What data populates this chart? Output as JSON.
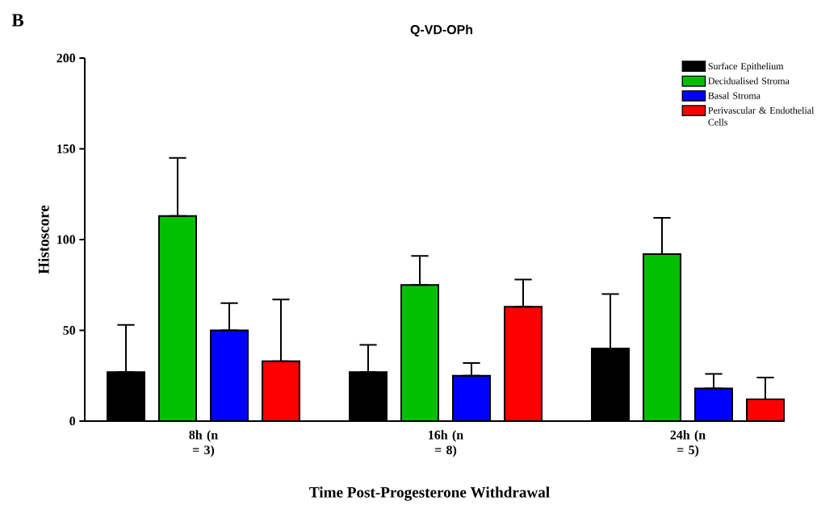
{
  "chart_data": {
    "type": "bar",
    "title": "Q-VD-OPh",
    "xlabel": "Time Post-Progesterone Withdrawal",
    "ylabel": "Histoscore",
    "annotations": [
      "B"
    ],
    "categories": [
      "8h (n = 3)",
      "16h (n = 8)",
      "24h (n = 5)"
    ],
    "series": [
      {
        "name": "Surface Epithelium",
        "color": "#000000",
        "values": [
          27,
          27,
          40
        ],
        "errors": [
          [
            27,
            53
          ],
          [
            27,
            42
          ],
          [
            40,
            70
          ]
        ]
      },
      {
        "name": "Decidualised Stroma",
        "color": "#00c000",
        "values": [
          113,
          75,
          92
        ],
        "errors": [
          [
            113,
            145
          ],
          [
            75,
            91
          ],
          [
            92,
            112
          ]
        ]
      },
      {
        "name": "Basal Stroma",
        "color": "#0000ff",
        "values": [
          50,
          25,
          18
        ],
        "errors": [
          [
            50,
            65
          ],
          [
            25,
            32
          ],
          [
            18,
            26
          ]
        ]
      },
      {
        "name": "Perivascular & Endothelial Cells",
        "color": "#ff0000",
        "values": [
          33,
          63,
          12
        ],
        "errors": [
          [
            33,
            67
          ],
          [
            63,
            78
          ],
          [
            12,
            24
          ]
        ]
      }
    ],
    "ylim": [
      0,
      200
    ],
    "yticks": [
      0,
      50,
      100,
      150,
      200
    ],
    "legend": "top right"
  }
}
